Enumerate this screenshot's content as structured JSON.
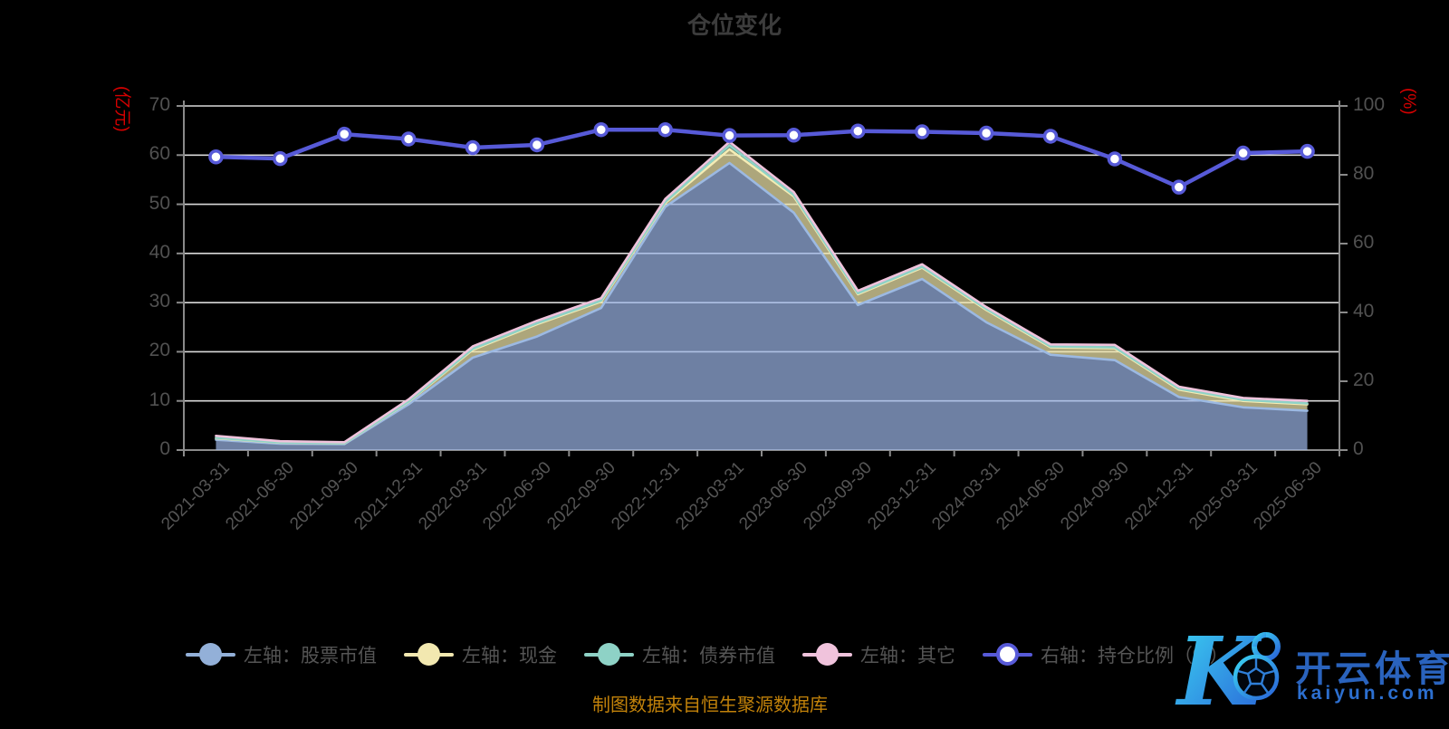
{
  "title": "仓位变化",
  "footer": "制图数据来自恒生聚源数据库",
  "axes": {
    "left": {
      "name": "(亿元)",
      "name_color": "#d60000",
      "ticks": [
        0,
        10,
        20,
        30,
        40,
        50,
        60,
        70
      ],
      "max": 70
    },
    "right": {
      "name": "(%)",
      "name_color": "#d60000",
      "ticks": [
        0,
        20,
        40,
        60,
        80,
        100
      ],
      "max": 100
    }
  },
  "colors": {
    "background": "#000000",
    "grid": "#d9d9d9",
    "axis": "#8a8a8a",
    "tick_label": "#515151",
    "title": "#3c3c3c",
    "legend_text": "#555555",
    "footer_text": "#c2820a"
  },
  "legend": [
    {
      "label": "左轴：股票市值",
      "color": "#93b0d8",
      "marker": "filled-circle"
    },
    {
      "label": "左轴：现金",
      "color": "#f2e8b0",
      "marker": "filled-circle"
    },
    {
      "label": "左轴：债券市值",
      "color": "#8ed2c6",
      "marker": "filled-circle"
    },
    {
      "label": "左轴：其它",
      "color": "#f0c3dc",
      "marker": "filled-circle"
    },
    {
      "label": "右轴：持仓比例（%）",
      "color": "#575ad8",
      "marker": "hollow-circle"
    }
  ],
  "watermark": {
    "brand": "开云体育",
    "domain": "kaiyun.com"
  },
  "chart_data": {
    "type": "area",
    "subtype": "stacked-area-with-line",
    "title": "仓位变化",
    "categories": [
      "2021-03-31",
      "2021-06-30",
      "2021-09-30",
      "2021-12-31",
      "2022-03-31",
      "2022-06-30",
      "2022-09-30",
      "2022-12-31",
      "2023-03-31",
      "2023-06-30",
      "2023-09-30",
      "2023-12-31",
      "2024-03-31",
      "2024-06-30",
      "2024-09-30",
      "2024-12-31",
      "2025-03-31",
      "2025-06-30"
    ],
    "left_axis": {
      "label": "(亿元)",
      "range": [
        0,
        70
      ],
      "grid_every": 10
    },
    "right_axis": {
      "label": "(%)",
      "range": [
        0,
        100
      ],
      "tick_every": 20
    },
    "grid": true,
    "legend_position": "bottom",
    "series": [
      {
        "name": "左轴：股票市值",
        "axis": "left",
        "type": "area",
        "stack": true,
        "line": "#9cb9e2",
        "fill": "rgba(156,182,232,0.70)",
        "values": [
          2.1,
          1.3,
          1.2,
          9.3,
          18.8,
          23.1,
          28.9,
          49.5,
          58.4,
          48.3,
          29.5,
          34.8,
          26.0,
          19.4,
          18.3,
          10.8,
          8.7,
          8.0
        ]
      },
      {
        "name": "左轴：现金",
        "axis": "left",
        "type": "area",
        "stack": true,
        "line": "#f4ecb4",
        "fill": "rgba(240,230,170,0.72)",
        "values": [
          0.3,
          0.2,
          0.15,
          0.5,
          1.6,
          2.5,
          1.3,
          0.8,
          2.8,
          3.3,
          2.2,
          2.3,
          2.5,
          1.5,
          2.4,
          1.5,
          1.3,
          1.3
        ]
      },
      {
        "name": "左轴：债券市值",
        "axis": "left",
        "type": "area",
        "stack": true,
        "line": "#8ed2c6",
        "fill": "rgba(140,210,195,0.6)",
        "values": [
          0.1,
          0.05,
          0.05,
          0.1,
          0.2,
          0.2,
          0.2,
          0.2,
          0.8,
          0.3,
          0.2,
          0.2,
          0.2,
          0.2,
          0.2,
          0.2,
          0.2,
          0.2
        ]
      },
      {
        "name": "左轴：其它",
        "axis": "left",
        "type": "area",
        "stack": true,
        "line": "#f0c3dc",
        "fill": "rgba(240,195,220,0.55)",
        "values": [
          0.4,
          0.25,
          0.2,
          0.4,
          0.5,
          0.5,
          0.5,
          0.6,
          0.7,
          0.6,
          0.5,
          0.5,
          0.4,
          0.4,
          0.5,
          0.4,
          0.4,
          0.5
        ]
      },
      {
        "name": "右轴：持仓比例(%)",
        "axis": "right",
        "type": "line",
        "stack": false,
        "line": "#575ad8",
        "point_fill": "#ffffff",
        "values": [
          85.2,
          84.7,
          91.8,
          90.4,
          87.9,
          88.7,
          93.1,
          93.1,
          91.4,
          91.5,
          92.7,
          92.5,
          92.1,
          91.2,
          84.6,
          76.4,
          86.3,
          86.8
        ]
      }
    ]
  }
}
